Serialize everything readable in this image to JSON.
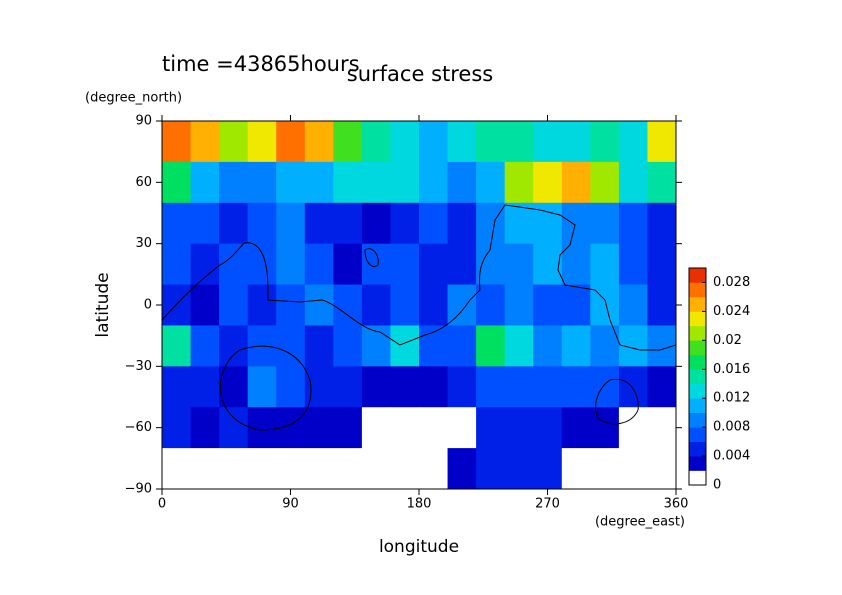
{
  "chart_data": {
    "type": "contour",
    "title": "surface stress",
    "subtitle": "time =43865hours",
    "xlabel": "longitude",
    "xunit": "(degree_east)",
    "ylabel": "latitude",
    "yunit": "(degree_north)",
    "xlim": [
      0,
      360
    ],
    "ylim": [
      -90,
      90
    ],
    "xticks": [
      0,
      90,
      180,
      270,
      360
    ],
    "yticks": [
      {
        "value": -90,
        "label": "−90"
      },
      {
        "value": -60,
        "label": "−60"
      },
      {
        "value": -30,
        "label": "−30"
      },
      0,
      30,
      60,
      90
    ],
    "x": [
      10,
      30,
      50,
      70,
      90,
      110,
      130,
      150,
      170,
      190,
      210,
      230,
      250,
      270,
      290,
      310,
      330,
      350
    ],
    "y": [
      80,
      60,
      40,
      20,
      0,
      -20,
      -40,
      -60,
      -80
    ],
    "values": [
      [
        0.026,
        0.024,
        0.02,
        0.022,
        0.026,
        0.024,
        0.018,
        0.014,
        0.012,
        0.01,
        0.012,
        0.014,
        0.014,
        0.012,
        0.012,
        0.014,
        0.012,
        0.022
      ],
      [
        0.016,
        0.01,
        0.008,
        0.008,
        0.01,
        0.01,
        0.012,
        0.012,
        0.012,
        0.01,
        0.008,
        0.01,
        0.02,
        0.022,
        0.024,
        0.02,
        0.012,
        0.014
      ],
      [
        0.006,
        0.006,
        0.004,
        0.006,
        0.008,
        0.004,
        0.004,
        0.002,
        0.004,
        0.006,
        0.004,
        0.008,
        0.01,
        0.01,
        0.008,
        0.008,
        0.006,
        0.004
      ],
      [
        0.006,
        0.004,
        0.006,
        0.006,
        0.008,
        0.006,
        0.002,
        0.006,
        0.006,
        0.004,
        0.004,
        0.008,
        0.008,
        0.01,
        0.008,
        0.01,
        0.006,
        0.004
      ],
      [
        0.004,
        0.002,
        0.006,
        0.004,
        0.006,
        0.008,
        0.006,
        0.004,
        0.006,
        0.004,
        0.008,
        0.006,
        0.008,
        0.006,
        0.006,
        0.01,
        0.008,
        0.004
      ],
      [
        0.014,
        0.006,
        0.004,
        0.006,
        0.006,
        0.004,
        0.006,
        0.008,
        0.012,
        0.006,
        0.006,
        0.016,
        0.012,
        0.008,
        0.01,
        0.008,
        0.01,
        0.008
      ],
      [
        0.004,
        0.004,
        0.002,
        0.008,
        0.006,
        0.004,
        0.004,
        0.002,
        0.002,
        0.002,
        0.004,
        0.006,
        0.006,
        0.006,
        0.006,
        0.006,
        0.004,
        0.002
      ],
      [
        0.004,
        0.002,
        0.004,
        0.002,
        0.002,
        0.002,
        0.002,
        0,
        0,
        0,
        0,
        0.004,
        0.004,
        0.004,
        0.002,
        0.002,
        0,
        0
      ],
      [
        0,
        0,
        0,
        0,
        0,
        0,
        0,
        0,
        0,
        0,
        0.002,
        0.004,
        0.004,
        0.004,
        0,
        0,
        0,
        0
      ]
    ],
    "colorbar": {
      "lim": [
        0,
        0.03
      ],
      "ticks": [
        0,
        0.004,
        0.008,
        0.012,
        0.016,
        0.02,
        0.024,
        0.028
      ],
      "levels": [
        0,
        0.002,
        0.004,
        0.006,
        0.008,
        0.01,
        0.012,
        0.014,
        0.016,
        0.018,
        0.02,
        0.022,
        0.024,
        0.026,
        0.028,
        0.03
      ],
      "colors": [
        "#ffffff",
        "#0000c8",
        "#0020e8",
        "#0050ff",
        "#0080ff",
        "#00b0ff",
        "#00d8e0",
        "#00e0a0",
        "#00e060",
        "#40e020",
        "#a0e800",
        "#f0e800",
        "#ffb000",
        "#ff7000",
        "#e83000"
      ]
    }
  }
}
